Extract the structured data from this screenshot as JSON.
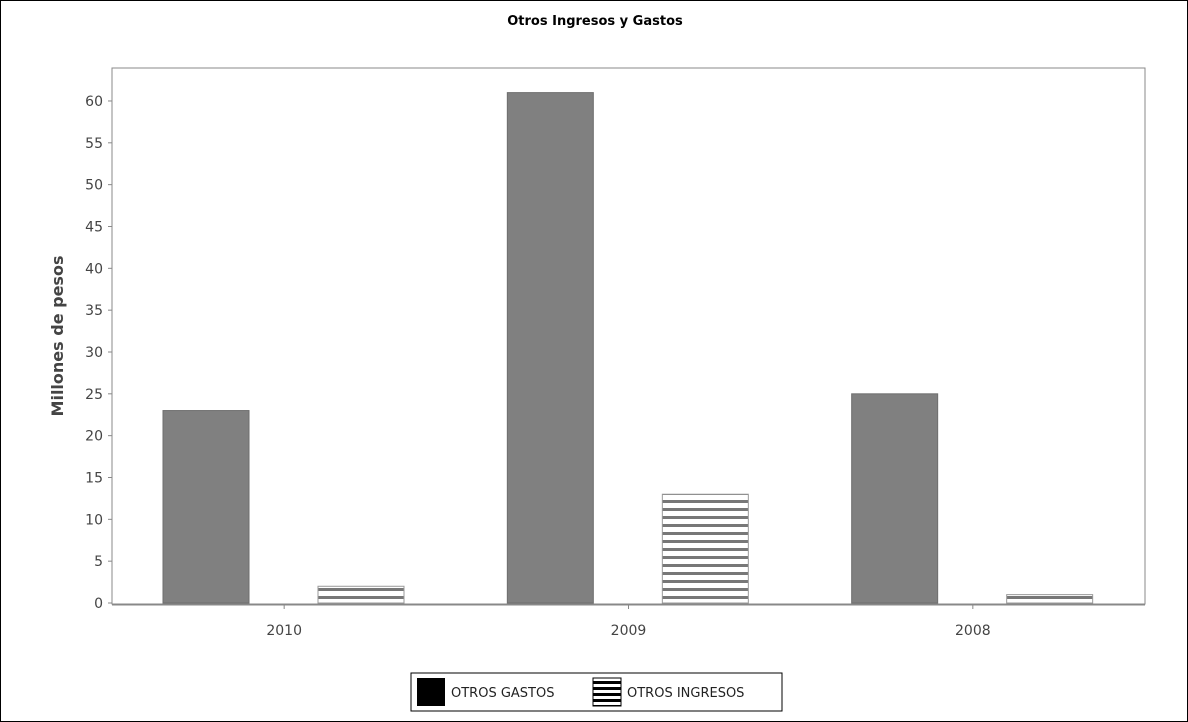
{
  "chart_data": {
    "type": "bar",
    "title": "Otros Ingresos y Gastos",
    "xlabel": "",
    "ylabel": "Millones de pesos",
    "categories": [
      "2010",
      "2009",
      "2008"
    ],
    "series": [
      {
        "name": "OTROS GASTOS",
        "values": [
          23,
          61,
          25
        ],
        "color": "#808080",
        "pattern": "solid"
      },
      {
        "name": "OTROS INGRESOS",
        "values": [
          2,
          13,
          1
        ],
        "color": "#ffffff",
        "pattern": "horizontal-stripes"
      }
    ],
    "ylim": [
      0,
      64
    ],
    "yticks": [
      0,
      5,
      10,
      15,
      20,
      25,
      30,
      35,
      40,
      45,
      50,
      55,
      60
    ],
    "grid": false,
    "legend_position": "bottom"
  }
}
